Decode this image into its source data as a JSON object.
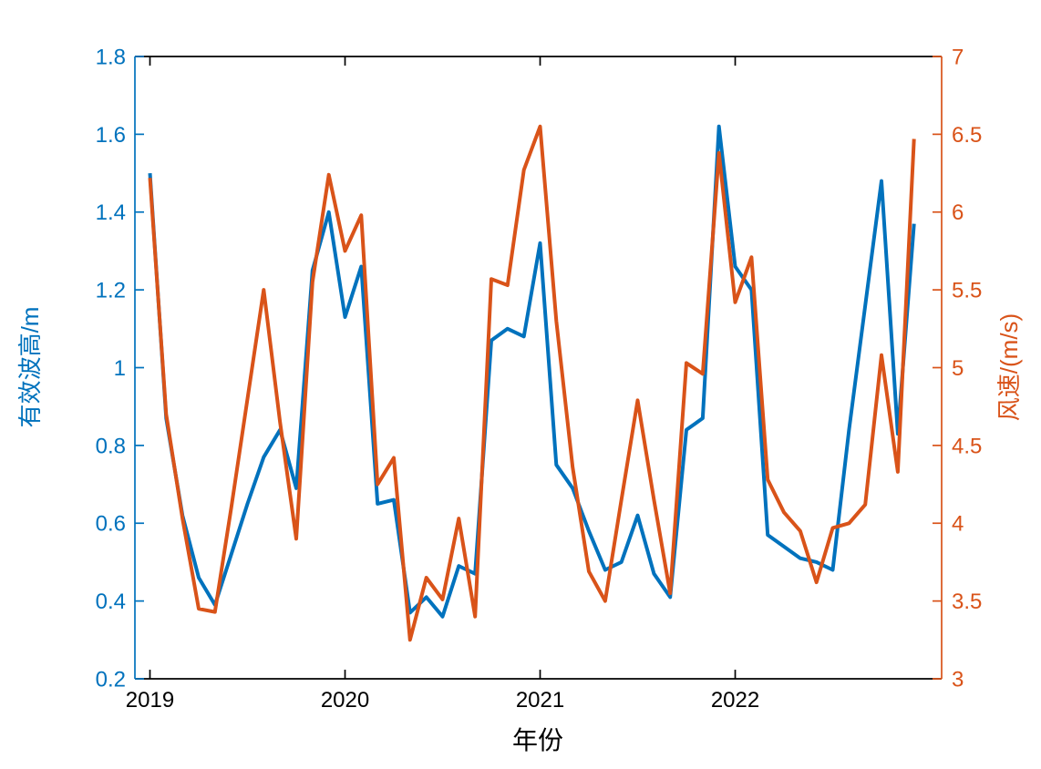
{
  "figure": {
    "background": "#ffffff",
    "xlabel": "年份",
    "ylabel_left": "有效波高/m",
    "ylabel_right": "风速/(m/s)",
    "left_color": "#0072BD",
    "right_color": "#D95319",
    "axis_color": "#000000"
  },
  "chart_data": {
    "type": "line",
    "title": "",
    "xlabel": "年份",
    "x_tick_labels": [
      "2019",
      "2020",
      "2021",
      "2022"
    ],
    "x_tick_month_index": [
      0,
      12,
      24,
      36
    ],
    "grid": false,
    "legend": "none",
    "left_axis": {
      "label": "有效波高/m",
      "color": "#0072BD",
      "min": 0.2,
      "max": 1.8,
      "tick_labels": [
        "0.2",
        "0.4",
        "0.6",
        "0.8",
        "1",
        "1.2",
        "1.4",
        "1.6",
        "1.8"
      ],
      "tick_values": [
        0.2,
        0.4,
        0.6,
        0.8,
        1.0,
        1.2,
        1.4,
        1.6,
        1.8
      ]
    },
    "right_axis": {
      "label": "风速/(m/s)",
      "color": "#D95319",
      "min": 3,
      "max": 7,
      "tick_labels": [
        "3",
        "3.5",
        "4",
        "4.5",
        "5",
        "5.5",
        "6",
        "6.5",
        "7"
      ],
      "tick_values": [
        3,
        3.5,
        4,
        4.5,
        5,
        5.5,
        6,
        6.5,
        7
      ]
    },
    "months": [
      "2019-01",
      "2019-02",
      "2019-03",
      "2019-04",
      "2019-05",
      "2019-06",
      "2019-07",
      "2019-08",
      "2019-09",
      "2019-10",
      "2019-11",
      "2019-12",
      "2020-01",
      "2020-02",
      "2020-03",
      "2020-04",
      "2020-05",
      "2020-06",
      "2020-07",
      "2020-08",
      "2020-09",
      "2020-10",
      "2020-11",
      "2020-12",
      "2021-01",
      "2021-02",
      "2021-03",
      "2021-04",
      "2021-05",
      "2021-06",
      "2021-07",
      "2021-08",
      "2021-09",
      "2021-10",
      "2021-11",
      "2021-12",
      "2022-01",
      "2022-02",
      "2022-03",
      "2022-04",
      "2022-05",
      "2022-06",
      "2022-07",
      "2022-08",
      "2022-09",
      "2022-10",
      "2022-11",
      "2022-12"
    ],
    "series": [
      {
        "name": "有效波高",
        "axis": "left",
        "color": "#0072BD",
        "values": [
          1.5,
          0.87,
          0.62,
          0.46,
          0.39,
          0.52,
          0.65,
          0.77,
          0.84,
          0.69,
          1.25,
          1.4,
          1.13,
          1.26,
          0.65,
          0.66,
          0.37,
          0.41,
          0.36,
          0.49,
          0.47,
          1.07,
          1.1,
          1.08,
          1.32,
          0.75,
          0.69,
          0.58,
          0.48,
          0.5,
          0.62,
          0.47,
          0.41,
          0.84,
          0.87,
          1.62,
          1.26,
          1.2,
          0.57,
          0.54,
          0.51,
          0.5,
          0.48,
          0.84,
          1.16,
          1.48,
          0.83,
          1.37
        ]
      },
      {
        "name": "风速",
        "axis": "right",
        "color": "#D95319",
        "values": [
          6.22,
          4.7,
          4.03,
          3.45,
          3.43,
          4.1,
          4.8,
          5.5,
          4.65,
          3.9,
          5.55,
          6.24,
          5.75,
          5.98,
          4.25,
          4.42,
          3.25,
          3.65,
          3.51,
          4.03,
          3.4,
          5.57,
          5.53,
          6.27,
          6.55,
          5.3,
          4.36,
          3.69,
          3.5,
          4.15,
          4.79,
          4.15,
          3.55,
          5.03,
          4.96,
          6.38,
          5.42,
          5.71,
          4.28,
          4.07,
          3.95,
          3.62,
          3.97,
          4.0,
          4.12,
          5.08,
          4.33,
          6.47
        ]
      }
    ]
  }
}
